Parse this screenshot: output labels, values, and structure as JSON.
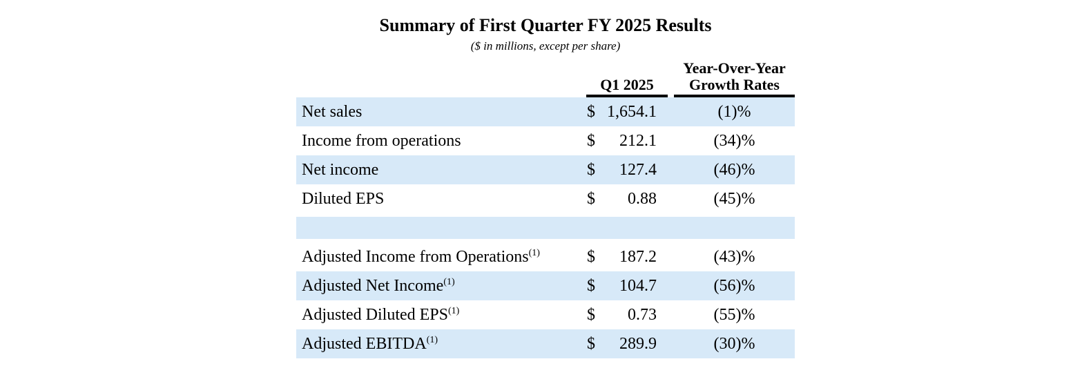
{
  "title": "Summary of First Quarter FY 2025 Results",
  "subtitle": "($ in millions, except per share)",
  "table": {
    "col_q1_header": "Q1 2025",
    "col_yoy_header_line1": "Year-Over-Year",
    "col_yoy_header_line2": "Growth Rates",
    "currency_symbol": "$",
    "highlight_color": "#d7e9f8",
    "rule_color": "#000000",
    "rows": [
      {
        "label": "Net sales",
        "footnote": "",
        "value": "1,654.1",
        "growth": "(1)%",
        "highlighted": true
      },
      {
        "label": "Income from operations",
        "footnote": "",
        "value": "212.1",
        "growth": "(34)%",
        "highlighted": false
      },
      {
        "label": "Net income",
        "footnote": "",
        "value": "127.4",
        "growth": "(46)%",
        "highlighted": true
      },
      {
        "label": "Diluted EPS",
        "footnote": "",
        "value": "0.88",
        "growth": "(45)%",
        "highlighted": false
      },
      {
        "label": "",
        "footnote": "",
        "value": "",
        "growth": "",
        "highlighted": true,
        "spacer": true
      },
      {
        "label": "Adjusted Income from Operations",
        "footnote": "(1)",
        "value": "187.2",
        "growth": "(43)%",
        "highlighted": false
      },
      {
        "label": "Adjusted Net Income",
        "footnote": "(1)",
        "value": "104.7",
        "growth": "(56)%",
        "highlighted": true
      },
      {
        "label": "Adjusted Diluted EPS",
        "footnote": "(1)",
        "value": "0.73",
        "growth": "(55)%",
        "highlighted": false
      },
      {
        "label": "Adjusted EBITDA",
        "footnote": "(1)",
        "value": "289.9",
        "growth": "(30)%",
        "highlighted": true
      }
    ]
  }
}
